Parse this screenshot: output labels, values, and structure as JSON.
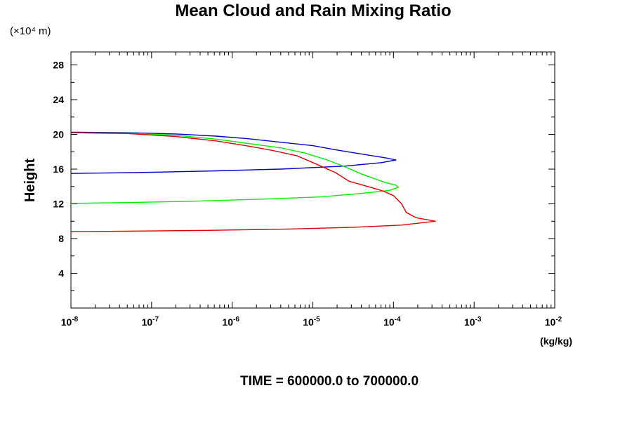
{
  "chart_data": {
    "type": "line",
    "title": "Mean Cloud and Rain Mixing Ratio",
    "ylabel": "Height",
    "y_scale_label": "(×10⁴ m)",
    "xlabel_unit": "(kg/kg)",
    "footer": "TIME = 600000.0 to 700000.0",
    "x_scale": "log",
    "xlim_exp": [
      -8,
      -2
    ],
    "ylim": [
      0,
      29.5
    ],
    "x_tick_labels": [
      {
        "exp": -8,
        "base": "10",
        "sup": "-8"
      },
      {
        "exp": -7,
        "base": "10",
        "sup": "-7"
      },
      {
        "exp": -6,
        "base": "10",
        "sup": "-6"
      },
      {
        "exp": -5,
        "base": "10",
        "sup": "-5"
      },
      {
        "exp": -4,
        "base": "10",
        "sup": "-4"
      },
      {
        "exp": -3,
        "base": "10",
        "sup": "-3"
      },
      {
        "exp": -2,
        "base": "10",
        "sup": "-2"
      }
    ],
    "y_ticks": [
      4,
      8,
      12,
      16,
      20,
      24,
      28
    ],
    "y_tick_labels": [
      "4",
      "8",
      "12",
      "16",
      "20",
      "24",
      "28"
    ],
    "grid": false,
    "series": [
      {
        "color": "#0000cc",
        "points": [
          [
            -8.0,
            20.25
          ],
          [
            -7.3,
            20.2
          ],
          [
            -6.7,
            20.05
          ],
          [
            -6.2,
            19.8
          ],
          [
            -5.8,
            19.5
          ],
          [
            -5.4,
            19.1
          ],
          [
            -5.0,
            18.7
          ],
          [
            -4.7,
            18.2
          ],
          [
            -4.4,
            17.75
          ],
          [
            -4.1,
            17.3
          ],
          [
            -3.97,
            17.05
          ],
          [
            -4.15,
            16.75
          ],
          [
            -4.6,
            16.35
          ],
          [
            -5.4,
            16.0
          ],
          [
            -6.2,
            15.8
          ],
          [
            -7.2,
            15.6
          ],
          [
            -8.0,
            15.5
          ]
        ]
      },
      {
        "color": "#00ee00",
        "points": [
          [
            -8.0,
            20.2
          ],
          [
            -7.3,
            20.15
          ],
          [
            -6.7,
            19.9
          ],
          [
            -6.2,
            19.45
          ],
          [
            -5.8,
            18.95
          ],
          [
            -5.4,
            18.45
          ],
          [
            -5.1,
            17.85
          ],
          [
            -4.82,
            17.05
          ],
          [
            -4.6,
            16.25
          ],
          [
            -4.4,
            15.45
          ],
          [
            -4.22,
            14.85
          ],
          [
            -4.1,
            14.45
          ],
          [
            -3.97,
            14.15
          ],
          [
            -3.94,
            13.9
          ],
          [
            -4.05,
            13.55
          ],
          [
            -4.4,
            13.2
          ],
          [
            -4.9,
            12.8
          ],
          [
            -5.6,
            12.55
          ],
          [
            -6.5,
            12.3
          ],
          [
            -7.3,
            12.15
          ],
          [
            -8.0,
            12.05
          ]
        ]
      },
      {
        "color": "#dd0000",
        "points": [
          [
            -8.0,
            20.2
          ],
          [
            -7.3,
            20.1
          ],
          [
            -6.7,
            19.75
          ],
          [
            -6.2,
            19.25
          ],
          [
            -5.8,
            18.65
          ],
          [
            -5.5,
            18.15
          ],
          [
            -5.2,
            17.55
          ],
          [
            -4.95,
            16.55
          ],
          [
            -4.72,
            15.6
          ],
          [
            -4.55,
            14.6
          ],
          [
            -4.3,
            13.95
          ],
          [
            -4.12,
            13.45
          ],
          [
            -4.0,
            12.95
          ],
          [
            -3.9,
            12.0
          ],
          [
            -3.84,
            11.0
          ],
          [
            -3.72,
            10.4
          ],
          [
            -3.6,
            10.2
          ],
          [
            -3.48,
            10.0
          ],
          [
            -3.9,
            9.55
          ],
          [
            -4.5,
            9.3
          ],
          [
            -5.3,
            9.1
          ],
          [
            -6.3,
            8.95
          ],
          [
            -7.3,
            8.85
          ],
          [
            -8.0,
            8.8
          ]
        ]
      }
    ]
  }
}
